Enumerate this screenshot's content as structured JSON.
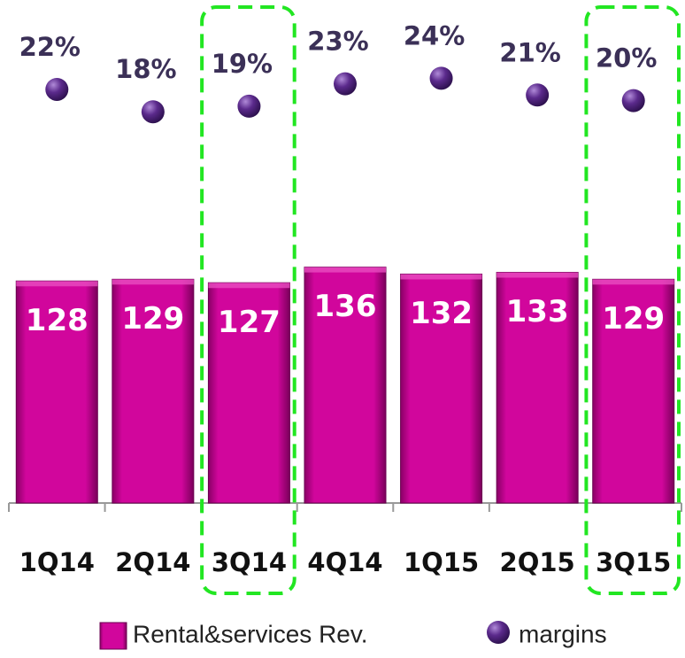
{
  "chart_data": {
    "type": "bar",
    "categories": [
      "1Q14",
      "2Q14",
      "3Q14",
      "4Q14",
      "1Q15",
      "2Q15",
      "3Q15"
    ],
    "series": [
      {
        "name": "Rental&services Rev.",
        "type": "bar",
        "color": "#d1069c",
        "values": [
          128,
          129,
          127,
          136,
          132,
          133,
          129
        ]
      },
      {
        "name": "margins",
        "type": "scatter",
        "axis": "y2",
        "color": "#5b2a8c",
        "values": [
          22,
          18,
          19,
          23,
          24,
          21,
          20
        ],
        "value_labels": [
          "22%",
          "18%",
          "19%",
          "23%",
          "24%",
          "21%",
          "20%"
        ]
      }
    ],
    "ylim": [
      0,
      290
    ],
    "y2lim": [
      -52,
      38
    ],
    "highlight": [
      2,
      6
    ],
    "highlight_color": "#22e622",
    "legend": "bottom"
  }
}
